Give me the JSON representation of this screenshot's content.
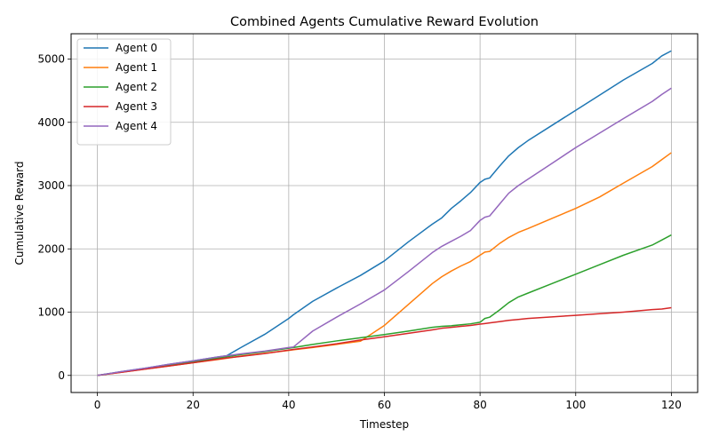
{
  "chart_data": {
    "type": "line",
    "title": "Combined Agents Cumulative Reward Evolution",
    "xlabel": "Timestep",
    "ylabel": "Cumulative Reward",
    "xlim": [
      -5.5,
      125.5
    ],
    "ylim": [
      -270,
      5400
    ],
    "xticks": [
      0,
      20,
      40,
      60,
      80,
      100,
      120
    ],
    "yticks": [
      0,
      1000,
      2000,
      3000,
      4000,
      5000
    ],
    "grid": true,
    "legend_position": "upper-left",
    "x": [
      0,
      5,
      10,
      15,
      20,
      25,
      27,
      30,
      35,
      40,
      41,
      45,
      50,
      55,
      60,
      65,
      70,
      72,
      74,
      76,
      78,
      80,
      81,
      82,
      84,
      86,
      88,
      90,
      95,
      100,
      105,
      110,
      116,
      118,
      120
    ],
    "series": [
      {
        "name": "Agent 0",
        "color": "#1f77b4",
        "values": [
          0,
          60,
          115,
          175,
          230,
          290,
          310,
          440,
          650,
          900,
          960,
          1170,
          1380,
          1580,
          1810,
          2110,
          2390,
          2490,
          2640,
          2760,
          2890,
          3050,
          3100,
          3120,
          3300,
          3470,
          3600,
          3710,
          3950,
          4190,
          4430,
          4670,
          4930,
          5050,
          5130
        ]
      },
      {
        "name": "Agent 1",
        "color": "#ff7f0e",
        "values": [
          0,
          50,
          100,
          150,
          200,
          250,
          270,
          305,
          350,
          395,
          405,
          440,
          490,
          540,
          790,
          1120,
          1450,
          1560,
          1650,
          1730,
          1800,
          1900,
          1950,
          1960,
          2080,
          2180,
          2260,
          2320,
          2480,
          2640,
          2820,
          3040,
          3300,
          3410,
          3520
        ]
      },
      {
        "name": "Agent 2",
        "color": "#2ca02c",
        "values": [
          0,
          55,
          110,
          165,
          215,
          270,
          295,
          330,
          375,
          430,
          440,
          490,
          545,
          595,
          645,
          700,
          760,
          775,
          785,
          800,
          815,
          840,
          900,
          920,
          1030,
          1150,
          1240,
          1300,
          1450,
          1600,
          1750,
          1900,
          2060,
          2140,
          2220
        ]
      },
      {
        "name": "Agent 3",
        "color": "#d62728",
        "values": [
          0,
          50,
          100,
          150,
          200,
          255,
          275,
          300,
          345,
          400,
          410,
          450,
          500,
          560,
          610,
          665,
          720,
          745,
          760,
          775,
          790,
          810,
          820,
          830,
          850,
          870,
          885,
          900,
          925,
          950,
          975,
          1000,
          1040,
          1050,
          1070
        ]
      },
      {
        "name": "Agent 4",
        "color": "#9467bd",
        "values": [
          0,
          60,
          115,
          175,
          230,
          290,
          310,
          340,
          385,
          440,
          450,
          700,
          920,
          1130,
          1350,
          1640,
          1940,
          2040,
          2120,
          2200,
          2290,
          2450,
          2500,
          2520,
          2700,
          2880,
          3000,
          3100,
          3350,
          3600,
          3830,
          4060,
          4330,
          4440,
          4540
        ]
      }
    ]
  }
}
